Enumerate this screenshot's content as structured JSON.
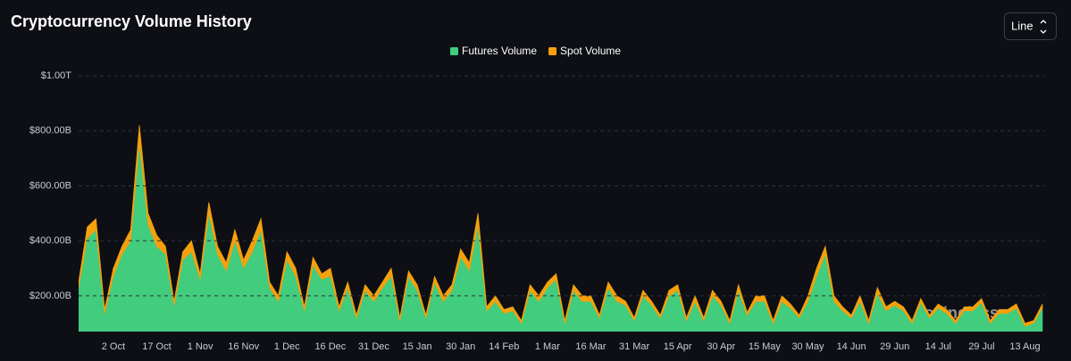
{
  "chart_data": {
    "type": "stacked-area",
    "title": "Cryptocurrency Volume History",
    "control": "Line",
    "watermark": "coinglass",
    "categories": [
      null,
      null,
      null,
      null,
      "2 Oct",
      null,
      null,
      null,
      null,
      "17 Oct",
      null,
      null,
      null,
      null,
      "1 Nov",
      null,
      null,
      null,
      null,
      "16 Nov",
      null,
      null,
      null,
      null,
      "1 Dec",
      null,
      null,
      null,
      null,
      "16 Dec",
      null,
      null,
      null,
      null,
      "31 Dec",
      null,
      null,
      null,
      null,
      "15 Jan",
      null,
      null,
      null,
      null,
      "30 Jan",
      null,
      null,
      null,
      null,
      "14 Feb",
      null,
      null,
      null,
      null,
      "1 Mar",
      null,
      null,
      null,
      null,
      "16 Mar",
      null,
      null,
      null,
      null,
      "31 Mar",
      null,
      null,
      null,
      null,
      "15 Apr",
      null,
      null,
      null,
      null,
      "30 Apr",
      null,
      null,
      null,
      null,
      "15 May",
      null,
      null,
      null,
      null,
      "30 May",
      null,
      null,
      null,
      null,
      "14 Jun",
      null,
      null,
      null,
      null,
      "29 Jun",
      null,
      null,
      null,
      null,
      "14 Jul",
      null,
      null,
      null,
      null,
      "29 Jul",
      null,
      null,
      null,
      null,
      "13 Aug",
      null,
      null
    ],
    "series": [
      {
        "name": "Futures Volume",
        "color": "#41cc7e",
        "values": [
          230,
          410,
          440,
          136,
          272,
          352,
          400,
          760,
          460,
          380,
          352,
          166,
          332,
          360,
          260,
          500,
          352,
          292,
          400,
          302,
          360,
          440,
          230,
          180,
          332,
          272,
          146,
          312,
          260,
          272,
          146,
          230,
          120,
          220,
          180,
          230,
          272,
          110,
          270,
          220,
          120,
          250,
          180,
          220,
          342,
          292,
          460,
          146,
          180,
          136,
          146,
          100,
          220,
          180,
          230,
          260,
          100,
          220,
          180,
          180,
          120,
          230,
          180,
          166,
          110,
          200,
          166,
          120,
          200,
          220,
          110,
          180,
          110,
          200,
          166,
          100,
          220,
          130,
          180,
          180,
          100,
          180,
          156,
          120,
          180,
          272,
          352,
          180,
          146,
          120,
          180,
          100,
          210,
          146,
          166,
          146,
          100,
          176,
          120,
          156,
          136,
          100,
          146,
          146,
          176,
          100,
          136,
          136,
          156,
          90,
          100,
          156
        ]
      },
      {
        "name": "Spot Volume",
        "color": "#f5a00c",
        "values": [
          20,
          40,
          40,
          14,
          28,
          28,
          40,
          60,
          40,
          40,
          28,
          14,
          28,
          40,
          20,
          40,
          28,
          28,
          40,
          28,
          40,
          40,
          20,
          20,
          28,
          28,
          14,
          28,
          20,
          28,
          14,
          20,
          10,
          20,
          20,
          20,
          28,
          10,
          20,
          20,
          10,
          20,
          20,
          20,
          28,
          28,
          40,
          14,
          20,
          14,
          14,
          10,
          20,
          20,
          20,
          20,
          10,
          20,
          20,
          20,
          10,
          20,
          20,
          14,
          10,
          20,
          14,
          10,
          20,
          20,
          10,
          20,
          10,
          20,
          14,
          10,
          20,
          10,
          20,
          20,
          10,
          20,
          14,
          10,
          20,
          28,
          28,
          20,
          14,
          10,
          20,
          10,
          20,
          14,
          14,
          14,
          10,
          14,
          10,
          14,
          14,
          10,
          14,
          14,
          14,
          10,
          14,
          14,
          14,
          10,
          10,
          14
        ]
      }
    ],
    "ylim": [
      70,
      1000
    ],
    "yticks": [
      {
        "value": 200,
        "label": "$200.00B"
      },
      {
        "value": 400,
        "label": "$400.00B"
      },
      {
        "value": 600,
        "label": "$600.00B"
      },
      {
        "value": 800,
        "label": "$800.00B"
      },
      {
        "value": 1000,
        "label": "$1.00T"
      }
    ],
    "grid": true,
    "legend": "top"
  }
}
